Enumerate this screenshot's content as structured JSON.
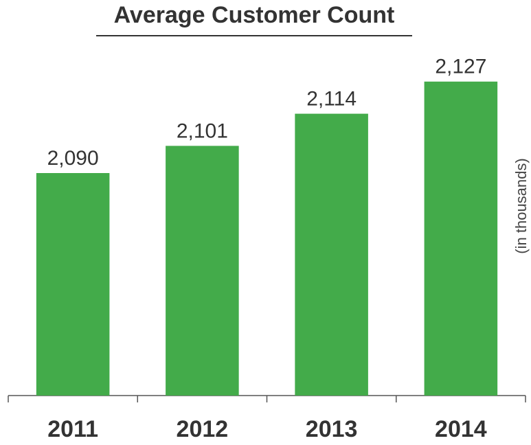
{
  "chart_data": {
    "type": "bar",
    "title": "Average Customer Count",
    "y_label": "(in thousands)",
    "categories": [
      "2011",
      "2012",
      "2013",
      "2014"
    ],
    "values": [
      2090,
      2101,
      2114,
      2127
    ],
    "value_labels": [
      "2,090",
      "2,101",
      "2,114",
      "2,127"
    ],
    "color": "#43ab4a",
    "ylim": [
      2000,
      2150
    ]
  }
}
